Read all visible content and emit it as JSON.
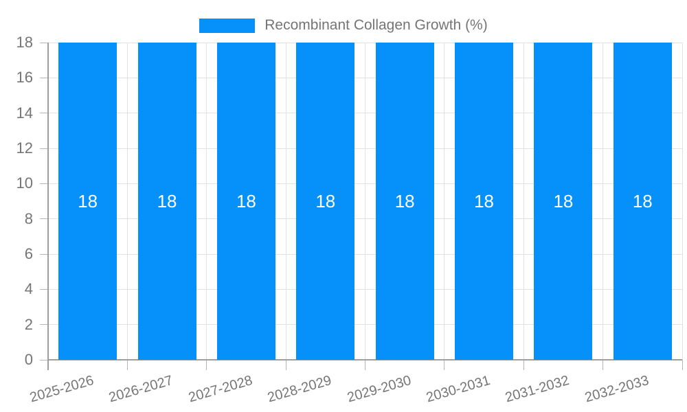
{
  "chart_data": {
    "type": "bar",
    "title": "Recombinant Collagen Growth (%)",
    "categories": [
      "2025-2026",
      "2026-2027",
      "2027-2028",
      "2028-2029",
      "2029-2030",
      "2030-2031",
      "2031-2032",
      "2032-2033"
    ],
    "values": [
      18,
      18,
      18,
      18,
      18,
      18,
      18,
      18
    ],
    "value_labels": [
      "18",
      "18",
      "18",
      "18",
      "18",
      "18",
      "18",
      "18"
    ],
    "xlabel": "",
    "ylabel": "",
    "ylim": [
      0,
      18
    ],
    "yticks": [
      0,
      2,
      4,
      6,
      8,
      10,
      12,
      14,
      16,
      18
    ],
    "grid": true,
    "legend_position": "top"
  },
  "legend": {
    "label": "Recombinant Collagen Growth (%)"
  },
  "colors": {
    "bar": "#0590FA",
    "value_label": "#ffffff",
    "text": "#757575",
    "grid": "#e2e2e2",
    "axis": "#9e9e9e",
    "tick": "#b5b5b5",
    "background": "#ffffff"
  }
}
